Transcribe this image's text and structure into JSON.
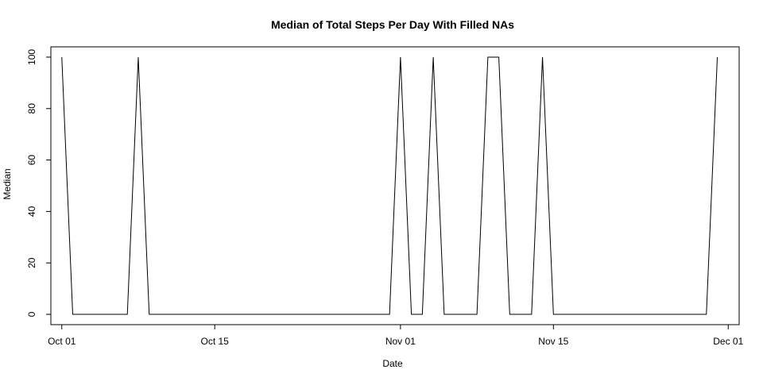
{
  "chart_data": {
    "type": "line",
    "title": "Median of Total Steps Per Day With Filled NAs",
    "xlabel": "Date",
    "ylabel": "Median",
    "x": [
      "2012-10-01",
      "2012-10-02",
      "2012-10-03",
      "2012-10-04",
      "2012-10-05",
      "2012-10-06",
      "2012-10-07",
      "2012-10-08",
      "2012-10-09",
      "2012-10-10",
      "2012-10-11",
      "2012-10-12",
      "2012-10-13",
      "2012-10-14",
      "2012-10-15",
      "2012-10-16",
      "2012-10-17",
      "2012-10-18",
      "2012-10-19",
      "2012-10-20",
      "2012-10-21",
      "2012-10-22",
      "2012-10-23",
      "2012-10-24",
      "2012-10-25",
      "2012-10-26",
      "2012-10-27",
      "2012-10-28",
      "2012-10-29",
      "2012-10-30",
      "2012-10-31",
      "2012-11-01",
      "2012-11-02",
      "2012-11-03",
      "2012-11-04",
      "2012-11-05",
      "2012-11-06",
      "2012-11-07",
      "2012-11-08",
      "2012-11-09",
      "2012-11-10",
      "2012-11-11",
      "2012-11-12",
      "2012-11-13",
      "2012-11-14",
      "2012-11-15",
      "2012-11-16",
      "2012-11-17",
      "2012-11-18",
      "2012-11-19",
      "2012-11-20",
      "2012-11-21",
      "2012-11-22",
      "2012-11-23",
      "2012-11-24",
      "2012-11-25",
      "2012-11-26",
      "2012-11-27",
      "2012-11-28",
      "2012-11-29",
      "2012-11-30"
    ],
    "series": [
      {
        "values": [
          100,
          0,
          0,
          0,
          0,
          0,
          0,
          100,
          0,
          0,
          0,
          0,
          0,
          0,
          0,
          0,
          0,
          0,
          0,
          0,
          0,
          0,
          0,
          0,
          0,
          0,
          0,
          0,
          0,
          0,
          0,
          100,
          0,
          0,
          100,
          0,
          0,
          0,
          0,
          100,
          100,
          0,
          0,
          0,
          100,
          0,
          0,
          0,
          0,
          0,
          0,
          0,
          0,
          0,
          0,
          0,
          0,
          0,
          0,
          0,
          100
        ],
        "color": "#000000"
      }
    ],
    "xlim": [
      "2012-09-30",
      "2012-12-02"
    ],
    "ylim": [
      -4,
      104
    ],
    "x_ticks": [
      {
        "date": "2012-10-01",
        "label": "Oct 01"
      },
      {
        "date": "2012-10-15",
        "label": "Oct 15"
      },
      {
        "date": "2012-11-01",
        "label": "Nov 01"
      },
      {
        "date": "2012-11-15",
        "label": "Nov 15"
      },
      {
        "date": "2012-12-01",
        "label": "Dec 01"
      }
    ],
    "y_ticks": [
      0,
      20,
      40,
      60,
      80,
      100
    ],
    "y_tick_labels": [
      "0",
      "20",
      "40",
      "60",
      "80",
      "100"
    ],
    "grid": false,
    "legend": "none"
  }
}
